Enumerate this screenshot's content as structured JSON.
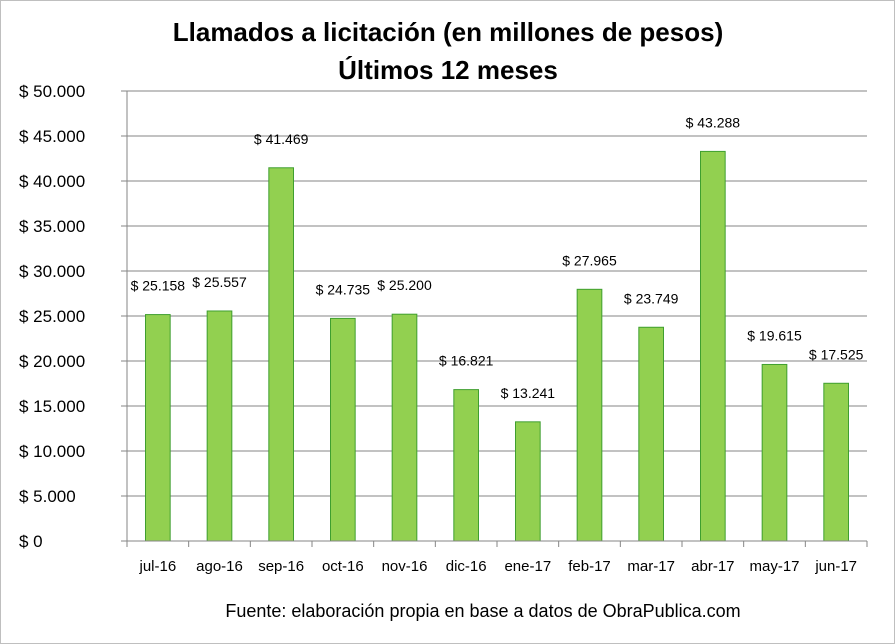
{
  "chart_data": {
    "type": "bar",
    "title": "Llamados a licitación (en millones de pesos)",
    "subtitle": "Últimos 12 meses",
    "categories": [
      "jul-16",
      "ago-16",
      "sep-16",
      "oct-16",
      "nov-16",
      "dic-16",
      "ene-17",
      "feb-17",
      "mar-17",
      "abr-17",
      "may-17",
      "jun-17"
    ],
    "values": [
      25158,
      25557,
      41469,
      24735,
      25200,
      16821,
      13241,
      27965,
      23749,
      43288,
      19615,
      17525
    ],
    "data_labels": [
      "$ 25.158",
      "$ 25.557",
      "$ 41.469",
      "$ 24.735",
      "$ 25.200",
      "$ 16.821",
      "$ 13.241",
      "$ 27.965",
      "$ 23.749",
      "$ 43.288",
      "$ 19.615",
      "$ 17.525"
    ],
    "y_ticks": [
      0,
      5000,
      10000,
      15000,
      20000,
      25000,
      30000,
      35000,
      40000,
      45000,
      50000
    ],
    "y_tick_labels": [
      "$ 0",
      "$ 5.000",
      "$ 10.000",
      "$ 15.000",
      "$ 20.000",
      "$ 25.000",
      "$ 30.000",
      "$ 35.000",
      "$ 40.000",
      "$ 45.000",
      "$ 50.000"
    ],
    "ylim": [
      0,
      50000
    ],
    "xlabel": "",
    "ylabel": "",
    "grid": true,
    "bar_color": "#92d050",
    "bar_border_color": "#3f9f2f",
    "gridline_color": "#868686"
  },
  "source_note": "Fuente: elaboración propia en base a datos de ObraPublica.com"
}
